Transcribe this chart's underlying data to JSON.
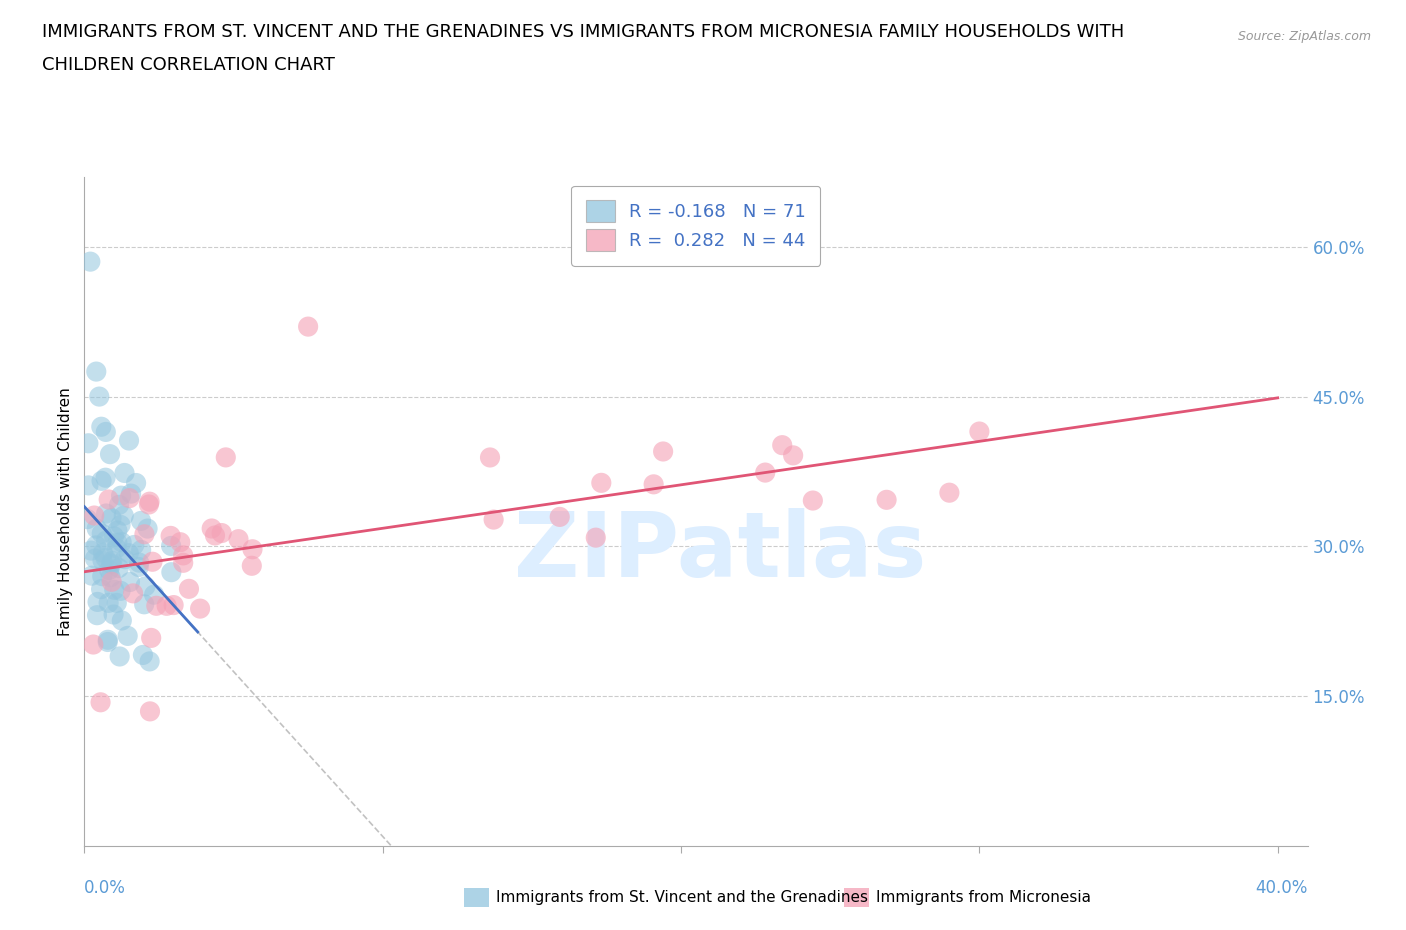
{
  "title_line1": "IMMIGRANTS FROM ST. VINCENT AND THE GRENADINES VS IMMIGRANTS FROM MICRONESIA FAMILY HOUSEHOLDS WITH",
  "title_line2": "CHILDREN CORRELATION CHART",
  "source_text": "Source: ZipAtlas.com",
  "ylabel": "Family Households with Children",
  "xlim": [
    0.0,
    0.41
  ],
  "ylim": [
    0.0,
    0.67
  ],
  "yticks": [
    0.15,
    0.3,
    0.45,
    0.6
  ],
  "ytick_labels": [
    "15.0%",
    "30.0%",
    "45.0%",
    "60.0%"
  ],
  "xtick_left_label": "0.0%",
  "xtick_right_label": "40.0%",
  "series1_label": "Immigrants from St. Vincent and the Grenadines",
  "series1_color": "#92c5de",
  "series1_line_color": "#4472c4",
  "series1_R": "-0.168",
  "series1_N": "71",
  "series2_label": "Immigrants from Micronesia",
  "series2_color": "#f4a0b5",
  "series2_line_color": "#e05575",
  "series2_R": "0.282",
  "series2_N": "44",
  "legend_text_color": "#4472c4",
  "watermark": "ZIPatlas",
  "watermark_color": "#ddeeff",
  "background_color": "#ffffff",
  "grid_color": "#cccccc",
  "ytick_label_color": "#5b9bd5",
  "title_fontsize": 13,
  "axis_label_fontsize": 11,
  "tick_label_fontsize": 11,
  "legend_fontsize": 13
}
